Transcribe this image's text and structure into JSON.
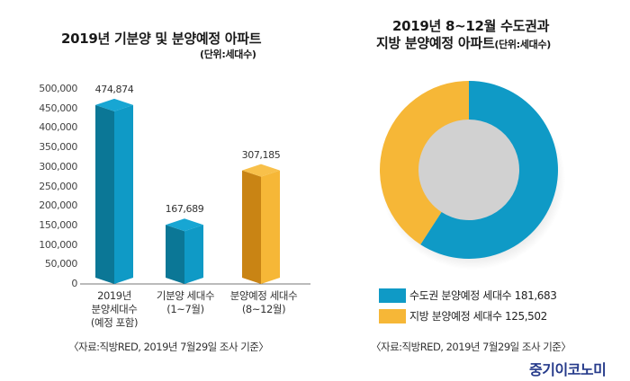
{
  "chart_data": [
    {
      "type": "bar",
      "title": "2019년 기분양 및 분양예정 아파트",
      "unit": "(단위:세대수)",
      "categories": [
        [
          "2019년",
          "분양세대수",
          "(예정 포함)"
        ],
        [
          "기분양 세대수",
          "(1~7월)"
        ],
        [
          "분양예정 세대수",
          "(8~12월)"
        ]
      ],
      "values": [
        474874,
        167689,
        307185
      ],
      "value_labels": [
        "474,874",
        "167,689",
        "307,185"
      ],
      "bar_colors": [
        {
          "front": "#0f9ac6",
          "side": "#0b7796",
          "top": "#17a6d3"
        },
        {
          "front": "#0f9ac6",
          "side": "#0b7796",
          "top": "#17a6d3"
        },
        {
          "front": "#f6b737",
          "side": "#c98414",
          "top": "#f8c04a"
        }
      ],
      "ylim": [
        0,
        500000
      ],
      "yticks": [
        0,
        50000,
        100000,
        150000,
        200000,
        250000,
        300000,
        350000,
        400000,
        450000,
        500000
      ],
      "ytick_labels": [
        "0",
        "50,000",
        "100,000",
        "150,000",
        "200,000",
        "250,000",
        "300,000",
        "350,000",
        "400,000",
        "450,000",
        "500,000"
      ],
      "xlabel": "",
      "ylabel": "",
      "grid": false,
      "source": "〈자료:직방RED, 2019년 7월29일 조사 기준〉"
    },
    {
      "type": "pie",
      "donut": true,
      "title_line1": "2019년 8~12월 수도권과",
      "title_line2": "지방 분양예정 아파트",
      "unit": "(단위:세대수)",
      "slices": [
        {
          "label": "수도권 분양예정 세대수 181,683",
          "value": 181683,
          "color": "#0f9ac6"
        },
        {
          "label": "지방 분양예정 세대수 125,502",
          "value": 125502,
          "color": "#f6b737"
        }
      ],
      "legend_position": "bottom-left",
      "source": "〈자료:직방RED, 2019년 7월29일 조사 기준〉"
    }
  ],
  "branding": {
    "logo_text": "중기이코노미",
    "logo_color": "#253a8a"
  }
}
